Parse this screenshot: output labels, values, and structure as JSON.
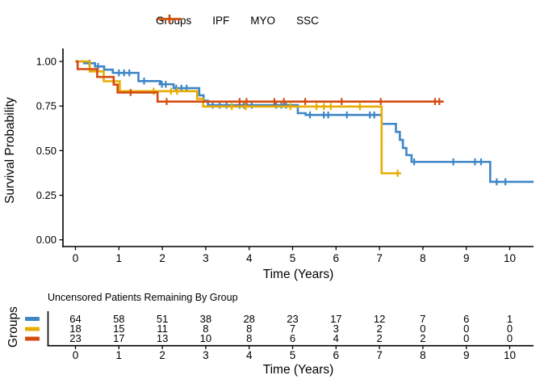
{
  "figure": {
    "legend": {
      "title": "Groups",
      "items": [
        {
          "label": "IPF"
        },
        {
          "label": "MYO"
        },
        {
          "label": "SSC"
        }
      ]
    },
    "y_axis": {
      "title": "Survival Probability",
      "tick_labels": [
        "0.00",
        "0.25",
        "0.50",
        "0.75",
        "1.00"
      ],
      "tick_values": [
        0,
        0.25,
        0.5,
        0.75,
        1
      ]
    },
    "x_axis": {
      "title": "Time (Years)",
      "tick_labels": [
        "0",
        "1",
        "2",
        "3",
        "4",
        "5",
        "6",
        "7",
        "8",
        "9",
        "10"
      ],
      "tick_values": [
        0,
        1,
        2,
        3,
        4,
        5,
        6,
        7,
        8,
        9,
        10
      ]
    }
  },
  "chart_data": {
    "type": "line",
    "subtype": "kaplan-meier-step-curves",
    "title": "",
    "xlabel": "Time (Years)",
    "ylabel": "Survival Probability",
    "xlim": [
      -0.3,
      10.6
    ],
    "ylim": [
      0,
      1.05
    ],
    "grid": "off",
    "legend_position": "top",
    "series": [
      {
        "name": "IPF",
        "color": "#3E86C6",
        "steps": [
          [
            0,
            1.0
          ],
          [
            0.2,
            0.99
          ],
          [
            0.45,
            0.972
          ],
          [
            0.66,
            0.954
          ],
          [
            0.86,
            0.936
          ],
          [
            1.45,
            0.89
          ],
          [
            1.95,
            0.872
          ],
          [
            2.26,
            0.85
          ],
          [
            2.85,
            0.81
          ],
          [
            2.95,
            0.78
          ],
          [
            3.05,
            0.755
          ],
          [
            5.12,
            0.71
          ],
          [
            5.3,
            0.7
          ],
          [
            7.05,
            0.65
          ],
          [
            7.38,
            0.605
          ],
          [
            7.47,
            0.56
          ],
          [
            7.54,
            0.515
          ],
          [
            7.62,
            0.475
          ],
          [
            7.74,
            0.437
          ],
          [
            9.55,
            0.325
          ]
        ],
        "end_time": 10.55,
        "censor_marks": [
          [
            0.32,
            0.99
          ],
          [
            0.52,
            0.972
          ],
          [
            1.0,
            0.936
          ],
          [
            1.12,
            0.936
          ],
          [
            1.24,
            0.936
          ],
          [
            1.58,
            0.89
          ],
          [
            1.99,
            0.872
          ],
          [
            2.08,
            0.872
          ],
          [
            2.32,
            0.85
          ],
          [
            2.44,
            0.85
          ],
          [
            2.56,
            0.85
          ],
          [
            3.16,
            0.755
          ],
          [
            3.32,
            0.755
          ],
          [
            3.48,
            0.755
          ],
          [
            3.78,
            0.755
          ],
          [
            3.88,
            0.755
          ],
          [
            4.06,
            0.755
          ],
          [
            4.62,
            0.755
          ],
          [
            4.74,
            0.755
          ],
          [
            4.85,
            0.755
          ],
          [
            5.4,
            0.7
          ],
          [
            5.72,
            0.7
          ],
          [
            5.82,
            0.7
          ],
          [
            6.25,
            0.7
          ],
          [
            6.78,
            0.7
          ],
          [
            6.88,
            0.7
          ],
          [
            7.8,
            0.437
          ],
          [
            8.7,
            0.437
          ],
          [
            9.2,
            0.437
          ],
          [
            9.34,
            0.437
          ],
          [
            9.7,
            0.325
          ],
          [
            9.9,
            0.325
          ]
        ]
      },
      {
        "name": "MYO",
        "color": "#E8AC00",
        "steps": [
          [
            0,
            1.0
          ],
          [
            0.33,
            0.944
          ],
          [
            0.65,
            0.889
          ],
          [
            1.02,
            0.833
          ],
          [
            2.8,
            0.79
          ],
          [
            2.94,
            0.747
          ],
          [
            7.05,
            0.373
          ]
        ],
        "end_time": 7.46,
        "censor_marks": [
          [
            1.8,
            0.833
          ],
          [
            2.2,
            0.833
          ],
          [
            2.34,
            0.833
          ],
          [
            3.6,
            0.747
          ],
          [
            3.92,
            0.747
          ],
          [
            4.95,
            0.747
          ],
          [
            5.55,
            0.747
          ],
          [
            5.72,
            0.747
          ],
          [
            5.88,
            0.747
          ],
          [
            6.55,
            0.747
          ],
          [
            7.42,
            0.373
          ]
        ]
      },
      {
        "name": "SSC",
        "color": "#D44B10",
        "steps": [
          [
            0,
            1.0
          ],
          [
            0.05,
            0.957
          ],
          [
            0.5,
            0.913
          ],
          [
            0.88,
            0.87
          ],
          [
            0.97,
            0.826
          ],
          [
            1.89,
            0.775
          ]
        ],
        "end_time": 8.48,
        "censor_marks": [
          [
            1.27,
            0.826
          ],
          [
            2.1,
            0.775
          ],
          [
            3.78,
            0.775
          ],
          [
            3.94,
            0.775
          ],
          [
            4.58,
            0.775
          ],
          [
            4.8,
            0.775
          ],
          [
            5.29,
            0.775
          ],
          [
            6.13,
            0.775
          ],
          [
            7.03,
            0.775
          ],
          [
            8.28,
            0.775
          ],
          [
            8.38,
            0.775
          ]
        ]
      }
    ]
  },
  "risk_table": {
    "title": "Uncensored Patients Remaining By Group",
    "ylabel": "Groups",
    "xlabel": "Time (Years)",
    "times": [
      0,
      1,
      2,
      3,
      4,
      5,
      6,
      7,
      8,
      9,
      10
    ],
    "time_labels": [
      "0",
      "1",
      "2",
      "3",
      "4",
      "5",
      "6",
      "7",
      "8",
      "9",
      "10"
    ],
    "rows": [
      {
        "group": "IPF",
        "color": "#3E86C6",
        "counts": [
          64,
          58,
          51,
          38,
          28,
          23,
          17,
          12,
          7,
          6,
          1
        ]
      },
      {
        "group": "MYO",
        "color": "#E8AC00",
        "counts": [
          18,
          15,
          11,
          8,
          8,
          7,
          3,
          2,
          0,
          0,
          0
        ]
      },
      {
        "group": "SSC",
        "color": "#D44B10",
        "counts": [
          23,
          17,
          13,
          10,
          8,
          6,
          4,
          2,
          2,
          0,
          0
        ]
      }
    ]
  },
  "colors": {
    "ipf": "#3E86C6",
    "myo": "#E8AC00",
    "ssc": "#D44B10",
    "axis": "#000000",
    "text": "#000000",
    "background": "#FFFFFF"
  }
}
